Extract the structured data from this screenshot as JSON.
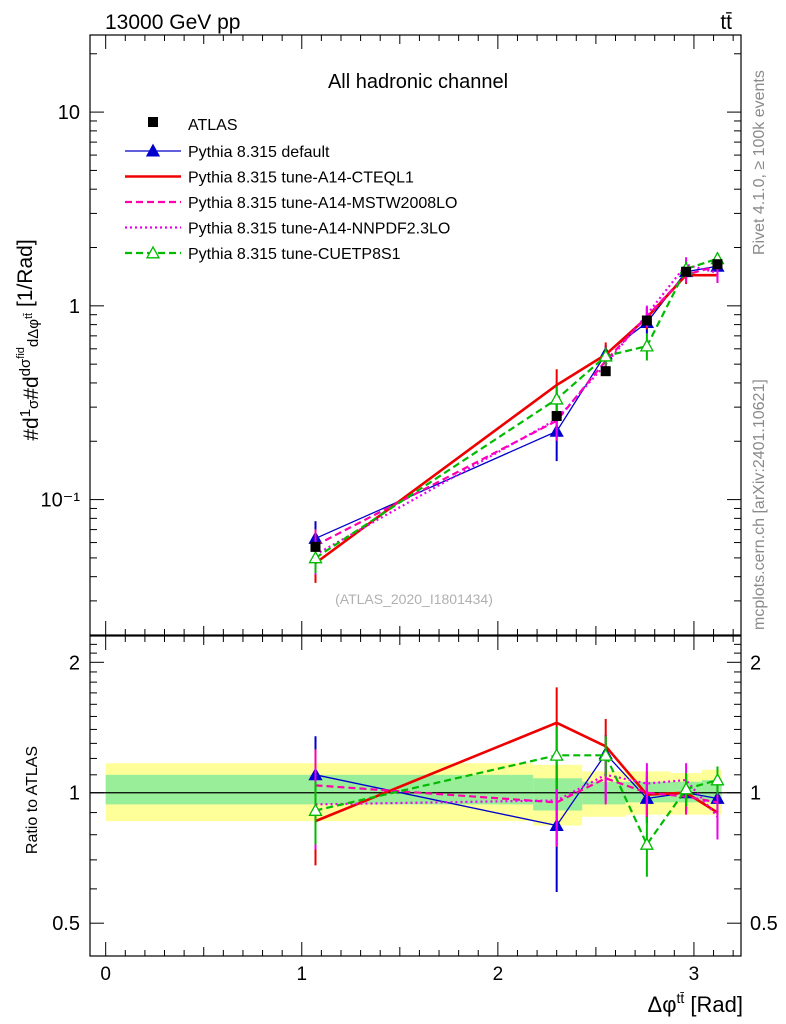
{
  "header": {
    "beam": "13000 GeV pp",
    "process": "tt̄",
    "channel": "All hadronic channel",
    "analysis_id": "(ATLAS_2020_I1801434)",
    "side_rivet": "Rivet 4.1.0, ≥ 100k events",
    "side_site": "mcplots.cern.ch [arXiv:2401.10621]"
  },
  "chart_data": {
    "type": "line",
    "title": "All hadronic channel",
    "xlabel": "Δφ^{tt̄} [Rad]",
    "ylabel": "#d1/σ#ddσ^{fid}/dΔφ^{tt̄} [1/Rad]",
    "ratio_ylabel": "Ratio to ATLAS",
    "xlim": [
      -0.08,
      3.24
    ],
    "ylim": [
      0.02,
      25
    ],
    "yscale": "log",
    "ratio_ylim": [
      0.42,
      2.3
    ],
    "x_ticks": [
      0,
      1,
      2,
      3
    ],
    "x_tick_labels": [
      "0",
      "1",
      "2",
      "3"
    ],
    "y_ticks": [
      0.1,
      1,
      10
    ],
    "y_tick_labels": [
      "10⁻¹",
      "1",
      "10"
    ],
    "ratio_ticks": [
      0.5,
      1,
      2
    ],
    "ratio_tick_labels": [
      "0.5",
      "1",
      "2"
    ],
    "bins": [
      [
        0.0,
        2.18
      ],
      [
        2.18,
        2.43
      ],
      [
        2.43,
        2.65
      ],
      [
        2.65,
        2.88
      ],
      [
        2.88,
        3.04
      ],
      [
        3.04,
        3.1416
      ]
    ],
    "x": [
      1.07,
      2.3,
      2.55,
      2.76,
      2.96,
      3.12
    ],
    "data": {
      "name": "ATLAS",
      "values": [
        0.057,
        0.27,
        0.46,
        0.84,
        1.5,
        1.64
      ],
      "band_inner": [
        [
          0.94,
          1.1
        ],
        [
          0.91,
          1.08
        ],
        [
          0.94,
          1.06
        ],
        [
          0.95,
          1.06
        ],
        [
          0.95,
          1.06
        ],
        [
          0.95,
          1.07
        ]
      ],
      "band_outer": [
        [
          0.86,
          1.17
        ],
        [
          0.84,
          1.16
        ],
        [
          0.88,
          1.12
        ],
        [
          0.89,
          1.12
        ],
        [
          0.89,
          1.11
        ],
        [
          0.89,
          1.13
        ]
      ]
    },
    "series": [
      {
        "name": "Pythia 8.315 default",
        "color": "#0000cc",
        "style": "solid",
        "marker": "triangle-filled",
        "values": [
          0.063,
          0.225,
          0.565,
          0.82,
          1.5,
          1.6
        ],
        "ratio": [
          1.1,
          0.84,
          1.23,
          0.97,
          1.0,
          0.97
        ],
        "ratio_err": [
          0.25,
          0.25,
          0.13,
          0.12,
          0.09,
          0.08
        ]
      },
      {
        "name": "Pythia 8.315 tune-A14-CTEQL1",
        "color": "#ee0000",
        "style": "solid-thick",
        "marker": "none",
        "values": [
          0.047,
          0.39,
          0.56,
          0.87,
          1.44,
          1.44
        ],
        "ratio": [
          0.86,
          1.45,
          1.28,
          0.99,
          1.0,
          0.9
        ],
        "ratio_err": [
          0.18,
          0.3,
          0.2,
          0.13,
          0.1,
          0.08
        ]
      },
      {
        "name": "Pythia 8.315 tune-A14-MSTW2008LO",
        "color": "#ff00aa",
        "style": "dashed",
        "marker": "none",
        "values": [
          0.058,
          0.255,
          0.52,
          0.88,
          1.45,
          1.6
        ],
        "ratio": [
          1.04,
          0.95,
          1.08,
          1.0,
          0.98,
          0.95
        ],
        "ratio_err": [
          0.22,
          0.2,
          0.14,
          0.12,
          0.09,
          0.08
        ]
      },
      {
        "name": "Pythia 8.315 tune-A14-NNPDF2.3LO",
        "color": "#ee00ee",
        "style": "dotted",
        "marker": "none",
        "values": [
          0.052,
          0.26,
          0.5,
          0.9,
          1.63,
          1.48
        ],
        "ratio": [
          0.94,
          0.96,
          1.1,
          1.05,
          1.07,
          0.88
        ],
        "ratio_err": [
          0.2,
          0.2,
          0.14,
          0.12,
          0.1,
          0.1
        ]
      },
      {
        "name": "Pythia 8.315 tune-CUETP8S1",
        "color": "#00bb00",
        "style": "dashed",
        "marker": "triangle-open",
        "values": [
          0.05,
          0.33,
          0.55,
          0.62,
          1.55,
          1.75
        ],
        "ratio": [
          0.91,
          1.22,
          1.22,
          0.76,
          1.02,
          1.07
        ],
        "ratio_err": [
          0.15,
          0.2,
          0.13,
          0.12,
          0.09,
          0.08
        ]
      }
    ]
  }
}
